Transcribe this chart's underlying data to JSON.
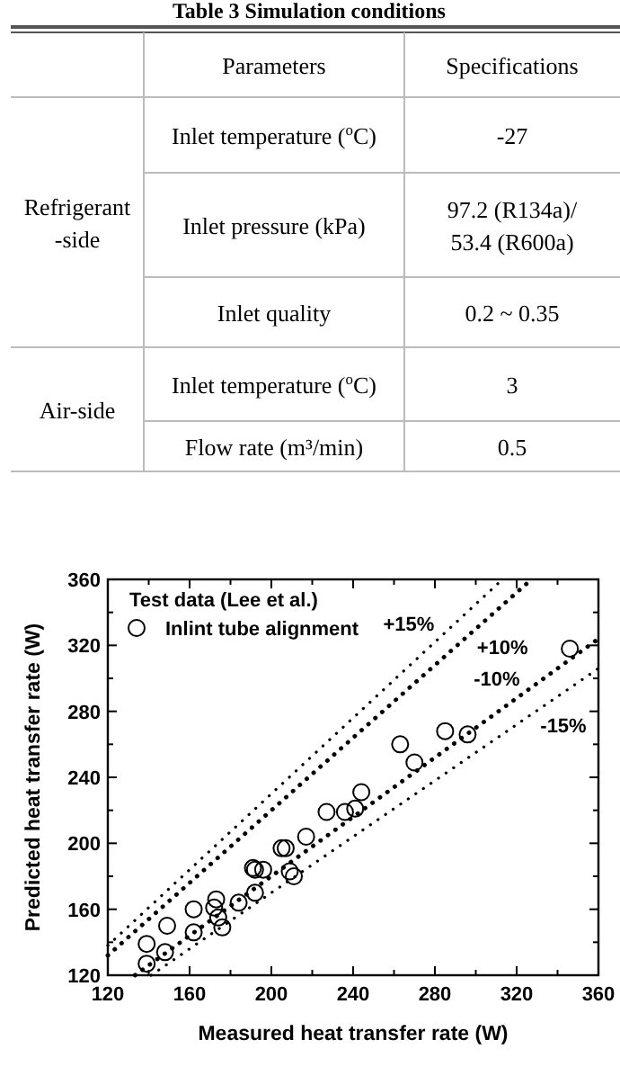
{
  "chart_data": {
    "type": "scatter",
    "xlabel": "Measured heat transfer rate (W)",
    "ylabel": "Predicted heat transfer rate (W)",
    "legend_title": "Test data (Lee et al.)",
    "legend": "top left",
    "xlim": [
      120,
      360
    ],
    "ylim": [
      120,
      360
    ],
    "xticks": [
      120,
      {
        "value": 140,
        "label": null
      },
      160,
      {
        "value": 180,
        "label": null
      },
      200,
      {
        "value": 220,
        "label": null
      },
      240,
      {
        "value": 260,
        "label": null
      },
      280,
      {
        "value": 300,
        "label": null
      },
      320,
      {
        "value": 340,
        "label": null
      },
      360
    ],
    "yticks": [
      120,
      {
        "value": 140,
        "label": null
      },
      160,
      {
        "value": 180,
        "label": null
      },
      200,
      {
        "value": 220,
        "label": null
      },
      240,
      {
        "value": 260,
        "label": null
      },
      280,
      {
        "value": 300,
        "label": null
      },
      320,
      {
        "value": 340,
        "label": null
      },
      360
    ],
    "grid": false,
    "annotations": [
      "Table 3 Simulation conditions",
      "Parameters",
      "Specifications",
      "Refrigerant\n-side",
      "Inlet temperature ($^{o}$C)",
      "-27",
      "Inlet pressure (kPa)",
      "97.2 (R134a)/\n53.4 (R600a)",
      "Inlet quality",
      "0.2 ~ 0.35",
      "Air-side",
      "Inlet temperature ($^{o}$C)",
      "3",
      "Flow rate (m³/min)",
      "0.5"
    ],
    "series": [
      {
        "name": "Inlint tube alignment",
        "marker": "circle",
        "color": "#000000",
        "x": [
          139,
          139,
          148,
          149,
          162,
          162,
          172,
          173,
          174,
          176,
          184,
          192,
          191,
          192,
          196,
          205,
          207,
          209,
          211,
          217,
          227,
          236,
          241,
          244,
          263,
          270,
          285,
          296,
          346
        ],
        "values": [
          127,
          139,
          134,
          150,
          160,
          146,
          161,
          166,
          155,
          149,
          164,
          170,
          185,
          184,
          184,
          197,
          197,
          183,
          180,
          204,
          219,
          219,
          221,
          231,
          260,
          249,
          268,
          266,
          318
        ]
      },
      {
        "name": "+15%",
        "type": "line",
        "marker": "none",
        "line_style": "dotted",
        "color": "#000000",
        "x": [
          120,
          313.04
        ],
        "values": [
          138,
          360
        ]
      },
      {
        "name": "+10%",
        "type": "line",
        "marker": "none",
        "line_style": "dotted",
        "color": "#000000",
        "x": [
          120,
          327.27
        ],
        "values": [
          132,
          360
        ]
      },
      {
        "name": "-10%",
        "type": "line",
        "marker": "none",
        "line_style": "dotted",
        "color": "#000000",
        "x": [
          133.33,
          360
        ],
        "values": [
          120,
          324
        ]
      },
      {
        "name": "-15%",
        "type": "line",
        "marker": "none",
        "line_style": "dotted",
        "color": "#000000",
        "x": [
          141.18,
          360
        ],
        "values": [
          120,
          306
        ]
      }
    ]
  }
}
